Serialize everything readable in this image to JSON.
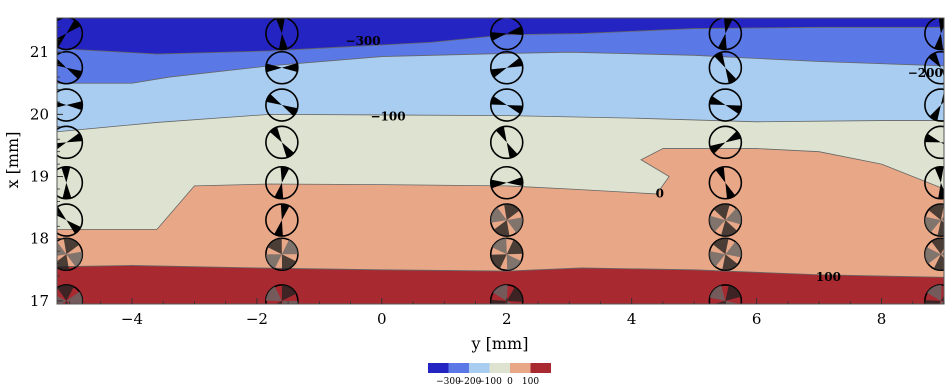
{
  "chart_data": {
    "type": "contour",
    "xlabel": "y [mm]",
    "ylabel": "x [mm]",
    "xlim": [
      -5.2,
      9.0
    ],
    "ylim": [
      16.95,
      21.55
    ],
    "x_ticks": [
      -4,
      -2,
      0,
      2,
      4,
      6,
      8
    ],
    "x_tick_labels": [
      "−4",
      "−2",
      "0",
      "2",
      "4",
      "6",
      "8"
    ],
    "y_ticks": [
      17,
      18,
      19,
      20,
      21
    ],
    "y_tick_labels": [
      "17",
      "18",
      "19",
      "20",
      "21"
    ],
    "contour_levels": [
      -300,
      -200,
      -100,
      0,
      100
    ],
    "bands": [
      {
        "name": "lt -300",
        "color": "#2424c2",
        "upper_y": [
          -5.2,
          21.5,
          9.0,
          21.5
        ],
        "lower_y": [
          -5.2,
          21.06,
          -3.6,
          20.97,
          -1.8,
          21.02,
          0.8,
          21.16,
          2.0,
          21.28,
          3.2,
          21.3,
          5.0,
          21.38,
          7.0,
          21.4,
          9.0,
          21.4
        ]
      },
      {
        "name": "-300 to -200",
        "color": "#5a78e6",
        "lower_y": [
          -5.2,
          20.5,
          -4.0,
          20.5,
          -3.4,
          20.6,
          -1.8,
          20.78,
          0.0,
          20.93,
          2.0,
          20.98,
          3.0,
          21.0,
          5.0,
          20.95,
          7.0,
          20.85,
          9.0,
          20.78
        ]
      },
      {
        "name": "-200 to -100",
        "color": "#a8cdf0",
        "lower_y": [
          -5.2,
          19.72,
          -3.6,
          19.87,
          -1.8,
          20.0,
          2.0,
          19.98,
          4.0,
          19.94,
          6.0,
          19.88,
          8.0,
          19.9,
          9.0,
          19.9
        ]
      },
      {
        "name": "-100 to 0",
        "color": "#dde3d0",
        "lower_y": [
          -5.2,
          18.15,
          -3.6,
          18.15,
          -3.0,
          18.85,
          -1.8,
          18.88,
          0.0,
          18.87,
          2.0,
          18.85,
          3.0,
          18.8,
          4.4,
          18.72,
          4.6,
          19.0,
          4.15,
          19.27,
          4.5,
          19.45,
          6.0,
          19.45,
          7.0,
          19.4,
          8.0,
          19.2,
          9.0,
          18.8
        ]
      },
      {
        "name": "0 to 100",
        "color": "#e8a888",
        "lower_y": [
          -5.2,
          17.55,
          -4.0,
          17.57,
          -2.0,
          17.53,
          0.0,
          17.5,
          2.0,
          17.48,
          3.2,
          17.53,
          5.0,
          17.5,
          7.0,
          17.42,
          9.0,
          17.38
        ]
      },
      {
        "name": "gt 100",
        "color": "#a82a30",
        "lower_y": [
          -5.2,
          16.95,
          9.0,
          16.95
        ]
      }
    ],
    "contour_labels": [
      {
        "text": "−300",
        "x": -0.3,
        "y": 21.17
      },
      {
        "text": "−200",
        "x": 8.7,
        "y": 20.66
      },
      {
        "text": "−100",
        "x": 0.1,
        "y": 19.96
      },
      {
        "text": "0",
        "x": 4.45,
        "y": 18.72
      },
      {
        "text": "100",
        "x": 7.15,
        "y": 17.38
      }
    ],
    "glyph_columns_y": [
      -5.05,
      -1.6,
      2.0,
      5.5,
      8.95
    ],
    "glyph_rows_x": [
      17.0,
      17.75,
      18.3,
      18.9,
      19.55,
      20.15,
      20.75,
      21.3
    ],
    "colorbar": {
      "colors": [
        "#2424c2",
        "#5a78e6",
        "#a8cdf0",
        "#dde3d0",
        "#e8a888",
        "#a82a30"
      ],
      "tick_labels": [
        "−300",
        "−200",
        "−100",
        "0",
        "100"
      ]
    }
  }
}
